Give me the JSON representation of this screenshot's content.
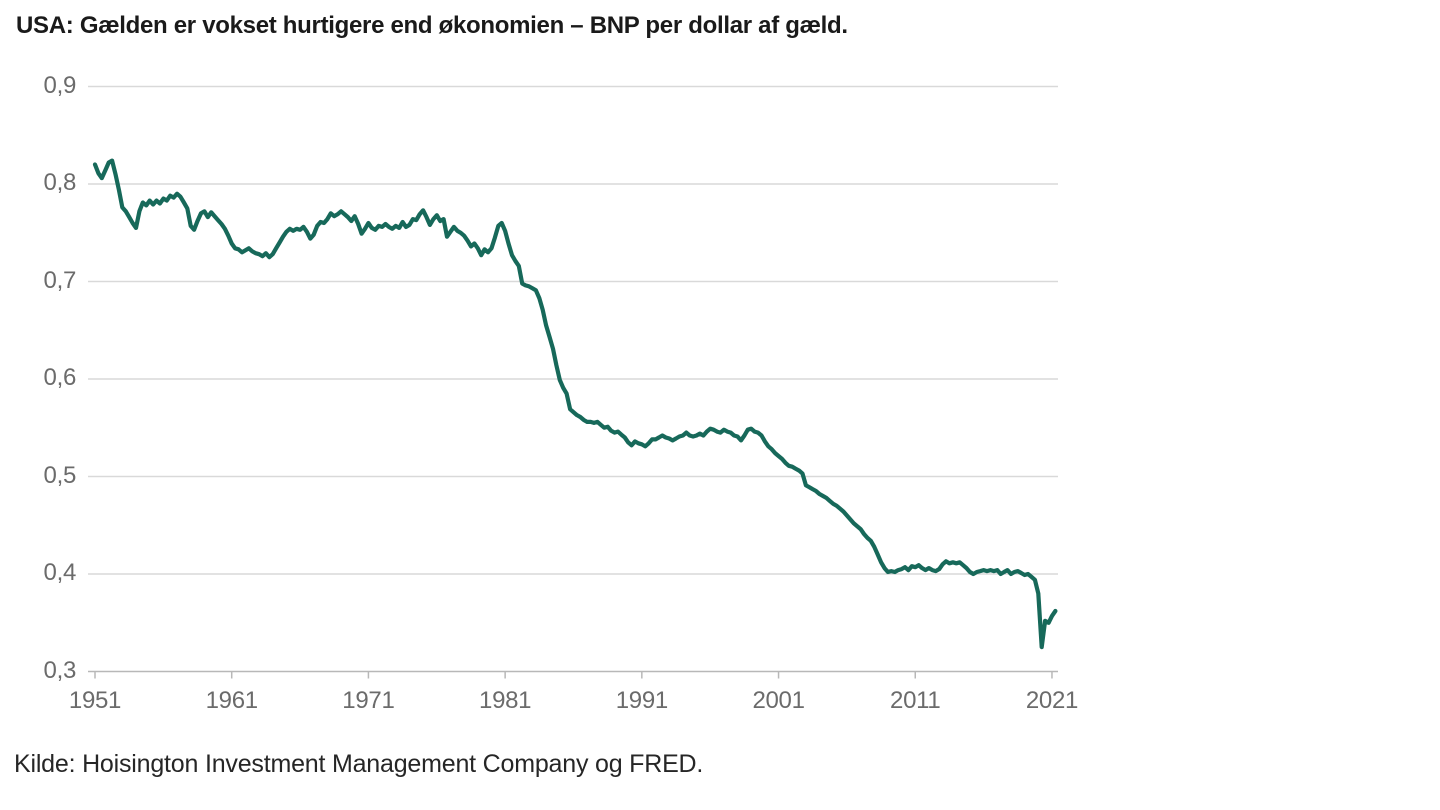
{
  "title": "USA: Gælden er vokset hurtigere end økonomien – BNP per dollar af gæld.",
  "source": "Kilde: Hoisington Investment Management Company og FRED.",
  "chart_data": {
    "type": "line",
    "series_name": "BNP per dollar af gæld (USA)",
    "title": "USA: Gælden er vokset hurtigere end økonomien – BNP per dollar af gæld.",
    "xlabel": "",
    "ylabel": "",
    "grid": true,
    "legend": "none",
    "xlim": [
      1951,
      2021.5
    ],
    "ylim": [
      0.3,
      0.9
    ],
    "x_start_year": 1951,
    "x_interval_years": 0.25,
    "line_color": "#17695a",
    "grid_color": "#d9d9d9",
    "axis_color": "#b8b8b8",
    "tick_label_color": "#6b6b6b",
    "title_color": "#1a1a1a",
    "y_ticks": [
      {
        "label": "0,9",
        "value": 0.9
      },
      {
        "label": "0,8",
        "value": 0.8
      },
      {
        "label": "0,7",
        "value": 0.7
      },
      {
        "label": "0,6",
        "value": 0.6
      },
      {
        "label": "0,5",
        "value": 0.5
      },
      {
        "label": "0,4",
        "value": 0.4
      },
      {
        "label": "0,3",
        "value": 0.3
      }
    ],
    "x_ticks": [
      {
        "label": "1951",
        "value": 1951
      },
      {
        "label": "1961",
        "value": 1961
      },
      {
        "label": "1971",
        "value": 1971
      },
      {
        "label": "1981",
        "value": 1981
      },
      {
        "label": "1991",
        "value": 1991
      },
      {
        "label": "2001",
        "value": 2001
      },
      {
        "label": "2011",
        "value": 2011
      },
      {
        "label": "2021",
        "value": 2021
      }
    ],
    "values": [
      0.82,
      0.811,
      0.806,
      0.814,
      0.822,
      0.824,
      0.81,
      0.794,
      0.776,
      0.772,
      0.766,
      0.76,
      0.755,
      0.772,
      0.781,
      0.778,
      0.783,
      0.779,
      0.783,
      0.78,
      0.785,
      0.783,
      0.788,
      0.786,
      0.79,
      0.787,
      0.781,
      0.775,
      0.757,
      0.753,
      0.762,
      0.77,
      0.772,
      0.766,
      0.771,
      0.767,
      0.763,
      0.759,
      0.754,
      0.747,
      0.739,
      0.734,
      0.733,
      0.73,
      0.732,
      0.734,
      0.731,
      0.729,
      0.728,
      0.726,
      0.729,
      0.725,
      0.728,
      0.734,
      0.74,
      0.746,
      0.751,
      0.754,
      0.752,
      0.754,
      0.753,
      0.756,
      0.751,
      0.744,
      0.748,
      0.757,
      0.761,
      0.76,
      0.764,
      0.77,
      0.767,
      0.769,
      0.772,
      0.769,
      0.766,
      0.762,
      0.767,
      0.759,
      0.749,
      0.754,
      0.76,
      0.755,
      0.753,
      0.757,
      0.756,
      0.759,
      0.756,
      0.754,
      0.757,
      0.755,
      0.761,
      0.756,
      0.758,
      0.764,
      0.763,
      0.769,
      0.773,
      0.766,
      0.758,
      0.764,
      0.768,
      0.762,
      0.764,
      0.746,
      0.751,
      0.756,
      0.752,
      0.75,
      0.747,
      0.742,
      0.736,
      0.739,
      0.734,
      0.727,
      0.733,
      0.73,
      0.734,
      0.745,
      0.757,
      0.76,
      0.752,
      0.739,
      0.727,
      0.721,
      0.716,
      0.698,
      0.696,
      0.695,
      0.693,
      0.691,
      0.683,
      0.671,
      0.655,
      0.643,
      0.631,
      0.614,
      0.599,
      0.591,
      0.585,
      0.569,
      0.566,
      0.563,
      0.561,
      0.558,
      0.556,
      0.556,
      0.555,
      0.556,
      0.553,
      0.55,
      0.551,
      0.547,
      0.545,
      0.546,
      0.543,
      0.54,
      0.535,
      0.532,
      0.536,
      0.534,
      0.533,
      0.531,
      0.534,
      0.538,
      0.538,
      0.54,
      0.542,
      0.54,
      0.539,
      0.537,
      0.539,
      0.541,
      0.542,
      0.545,
      0.542,
      0.541,
      0.542,
      0.544,
      0.542,
      0.546,
      0.549,
      0.548,
      0.546,
      0.545,
      0.548,
      0.546,
      0.545,
      0.542,
      0.541,
      0.537,
      0.542,
      0.548,
      0.549,
      0.546,
      0.545,
      0.542,
      0.536,
      0.531,
      0.528,
      0.524,
      0.521,
      0.518,
      0.514,
      0.511,
      0.51,
      0.508,
      0.506,
      0.503,
      0.491,
      0.489,
      0.487,
      0.485,
      0.482,
      0.48,
      0.478,
      0.475,
      0.472,
      0.47,
      0.467,
      0.464,
      0.46,
      0.456,
      0.452,
      0.449,
      0.446,
      0.441,
      0.437,
      0.434,
      0.428,
      0.42,
      0.412,
      0.406,
      0.402,
      0.403,
      0.402,
      0.404,
      0.405,
      0.407,
      0.404,
      0.408,
      0.407,
      0.409,
      0.406,
      0.404,
      0.406,
      0.404,
      0.403,
      0.405,
      0.41,
      0.413,
      0.411,
      0.412,
      0.411,
      0.412,
      0.409,
      0.406,
      0.402,
      0.4,
      0.402,
      0.403,
      0.404,
      0.403,
      0.404,
      0.403,
      0.404,
      0.4,
      0.402,
      0.404,
      0.4,
      0.402,
      0.403,
      0.401,
      0.399,
      0.4,
      0.397,
      0.394,
      0.38,
      0.325,
      0.352,
      0.35,
      0.357,
      0.362
    ]
  }
}
